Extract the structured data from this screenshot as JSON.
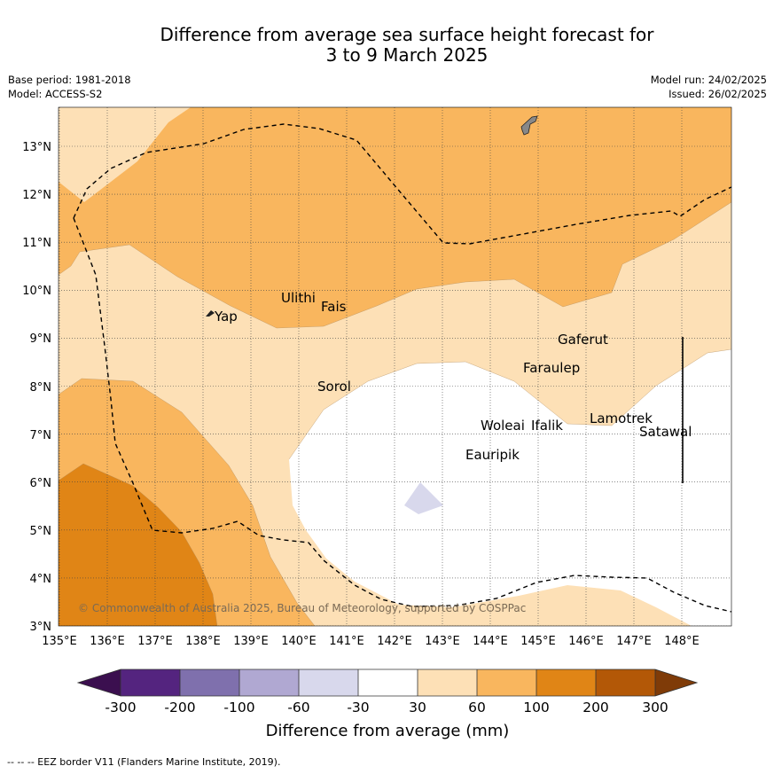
{
  "title": {
    "line1": "Difference from average sea surface height forecast for",
    "line2": "3 to 9 March 2025"
  },
  "meta": {
    "base_period": "Base period: 1981-2018",
    "model": "Model: ACCESS-S2",
    "model_run": "Model run: 24/02/2025",
    "issued": "Issued: 26/02/2025"
  },
  "axes": {
    "lat_labels": [
      "13°N",
      "12°N",
      "11°N",
      "10°N",
      "9°N",
      "8°N",
      "7°N",
      "6°N",
      "5°N",
      "4°N",
      "3°N"
    ],
    "lon_labels": [
      "135°E",
      "136°E",
      "137°E",
      "138°E",
      "139°E",
      "140°E",
      "141°E",
      "142°E",
      "143°E",
      "144°E",
      "145°E",
      "146°E",
      "147°E",
      "148°E"
    ],
    "lat_range": [
      3,
      13.8
    ],
    "lon_range": [
      135,
      149
    ]
  },
  "places": {
    "yap": "Yap",
    "ulithi": "Ulithi",
    "fais": "Fais",
    "sorol": "Sorol",
    "gaferut": "Gaferut",
    "faraulep": "Faraulep",
    "woleai": "Woleai",
    "ifalik": "Ifalik",
    "lamotrek": "Lamotrek",
    "satawal": "Satawal",
    "eauripik": "Eauripik"
  },
  "copyright": "© Commonwealth of Australia 2025, Bureau of Meteorology, supported by COSPPac",
  "colorbar": {
    "title": "Difference from average (mm)",
    "ticks": [
      "-300",
      "-200",
      "-100",
      "-60",
      "-30",
      "30",
      "60",
      "100",
      "200",
      "300"
    ],
    "colors": {
      "lt_minus300": "#3b0f4f",
      "m300_m200": "#54247f",
      "m200_m100": "#7f70ad",
      "m100_m60": "#b0a8d2",
      "m60_m30": "#d8d8ec",
      "m30_30": "#ffffff",
      "p30_60": "#fde0b6",
      "p60_100": "#f9b65e",
      "p100_200": "#e08516",
      "p200_300": "#b35807",
      "gt_300": "#7f3b08"
    }
  },
  "footnote": "--  --  -- EEZ border V11 (Flanders Marine Institute, 2019)."
}
